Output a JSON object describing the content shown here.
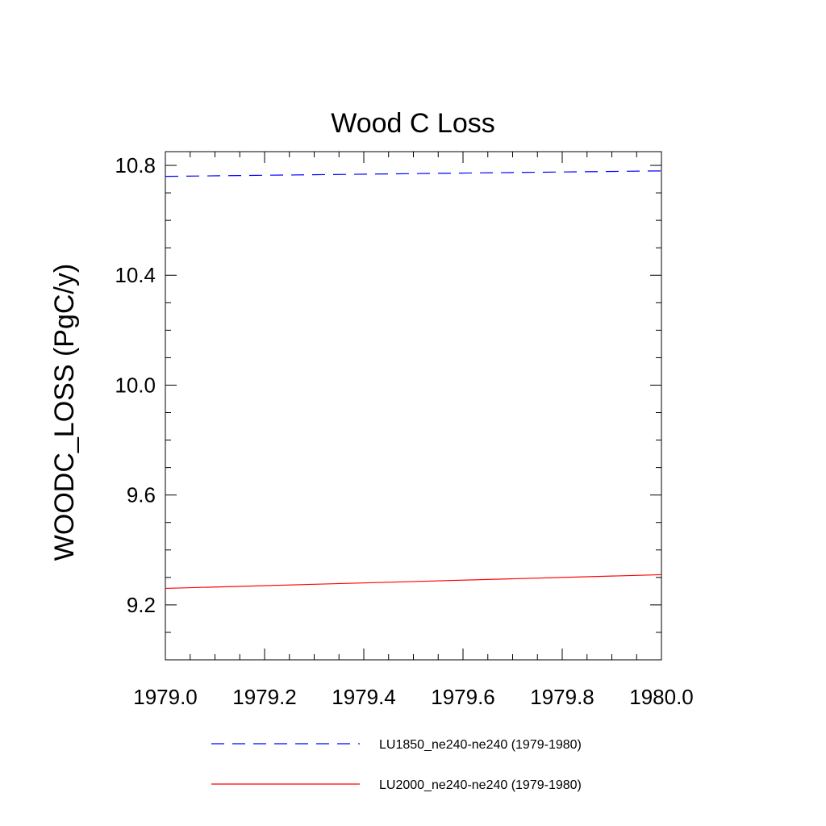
{
  "chart_data": {
    "type": "line",
    "title": "Wood C Loss",
    "xlabel": "",
    "ylabel": "WOODC_LOSS  (PgC/y)",
    "xlim": [
      1979.0,
      1980.0
    ],
    "ylim": [
      9.0,
      10.85
    ],
    "xticks": [
      1979.0,
      1979.2,
      1979.4,
      1979.6,
      1979.8,
      1980.0
    ],
    "xtick_labels": [
      "1979.0",
      "1979.2",
      "1979.4",
      "1979.6",
      "1979.8",
      "1980.0"
    ],
    "yticks": [
      9.2,
      9.6,
      10.0,
      10.4,
      10.8
    ],
    "ytick_labels": [
      "9.2",
      "9.6",
      "10.0",
      "10.4",
      "10.8"
    ],
    "grid": false,
    "legend_position": "bottom",
    "series": [
      {
        "name": "LU1850_ne240-ne240 (1979-1980)",
        "color": "#0000ff",
        "dash": "dashed",
        "x": [
          1979.0,
          1980.0
        ],
        "y": [
          10.76,
          10.78
        ]
      },
      {
        "name": "LU2000_ne240-ne240 (1979-1980)",
        "color": "#ff0000",
        "dash": "solid",
        "x": [
          1979.0,
          1980.0
        ],
        "y": [
          9.26,
          9.31
        ]
      }
    ]
  }
}
